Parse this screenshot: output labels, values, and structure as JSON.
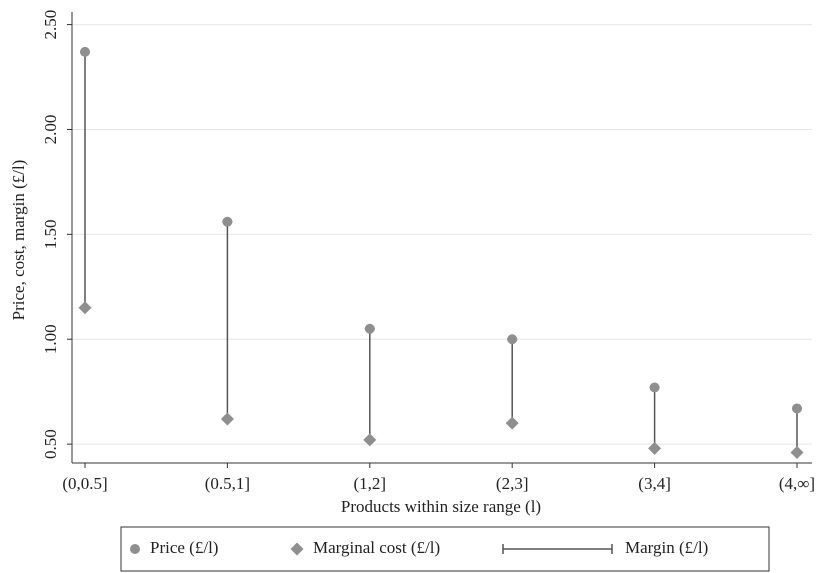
{
  "chart_data": {
    "type": "range",
    "x_label": "Products within size range (l)",
    "y_label": "Price, cost, margin  (£/l)",
    "categories": [
      "(0,0.5]",
      "(0.5,1]",
      "(1,2]",
      "(2,3]",
      "(3,4]",
      "(4,∞]"
    ],
    "series": [
      {
        "name": "Price (£/l)",
        "color": "#8f8f8f",
        "marker": "circle",
        "values": [
          2.37,
          1.56,
          1.05,
          1.0,
          0.77,
          0.67
        ]
      },
      {
        "name": "Marginal cost (£/l)",
        "color": "#8f8f8f",
        "marker": "diamond",
        "values": [
          1.15,
          0.62,
          0.52,
          0.6,
          0.48,
          0.46
        ]
      }
    ],
    "range_name": "Margin (£/l)",
    "range_color": "#555555",
    "ylim": [
      0.41,
      2.56
    ],
    "yticks": [
      {
        "value": 0.5,
        "label": "0.50"
      },
      {
        "value": 1,
        "label": "1.00"
      },
      {
        "value": 1.5,
        "label": "1.50"
      },
      {
        "value": 2,
        "label": "2.00"
      },
      {
        "value": 2.5,
        "label": "2.50"
      }
    ],
    "grid": true
  }
}
